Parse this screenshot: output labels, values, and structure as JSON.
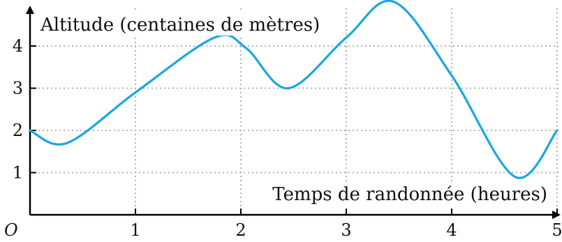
{
  "chart_data": {
    "type": "line",
    "xlabel": "Temps de randonnée (heures)",
    "ylabel": "Altitude (centaines de mètres)",
    "origin_label": "O",
    "xlim": [
      0,
      5
    ],
    "ylim": [
      0,
      5
    ],
    "x_ticks": [
      "1",
      "2",
      "3",
      "4",
      "5"
    ],
    "y_ticks": [
      "1",
      "2",
      "3",
      "4"
    ],
    "grid": true,
    "series": [
      {
        "color": "#1aa7e1",
        "points": [
          [
            0,
            2.0
          ],
          [
            0.35,
            1.7
          ],
          [
            1.0,
            2.9
          ],
          [
            1.75,
            4.2
          ],
          [
            2.05,
            3.95
          ],
          [
            2.45,
            3.0
          ],
          [
            3.0,
            4.2
          ],
          [
            3.45,
            5.05
          ],
          [
            4.0,
            3.3
          ],
          [
            4.6,
            0.9
          ],
          [
            5.0,
            2.0
          ]
        ]
      }
    ]
  }
}
